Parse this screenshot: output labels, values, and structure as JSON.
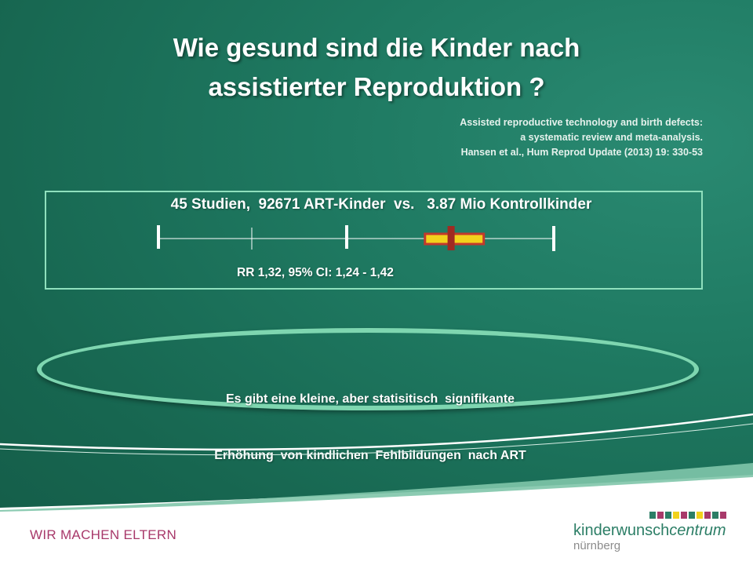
{
  "slide": {
    "title_lines": [
      "Wie gesund sind die Kinder nach",
      "assistierter Reproduktion ?"
    ],
    "citation_lines": [
      "Assisted reproductive technology and birth defects:",
      "a systematic review and meta-analysis.",
      "Hansen et al.,  Hum Reprod Update (2013) 19: 330-53"
    ],
    "study_summary": "45 Studien,  92671 ART-Kinder  vs.   3.87 Mio Kontrollkinder",
    "result_label": "RR 1,32, 95% CI: 1,24 - 1,42",
    "conclusion_lines": [
      "Es gibt eine kleine, aber statisitisch  signifikante",
      "Erhöhung  von kindlichen  Fehlbildungen  nach ART"
    ]
  },
  "forest_plot": {
    "point_estimate": 1.32,
    "ci_low": 1.24,
    "ci_high": 1.42,
    "colors": {
      "ci_bar": "#f2d21c",
      "ci_border": "#c23a2c",
      "marker": "#a02a22",
      "axis": "#ffffff"
    }
  },
  "footer": {
    "slogan": "WIR MACHEN ELTERN",
    "logo_main_regular": "kinderwunsch",
    "logo_main_italic": "centrum",
    "logo_sub": "nürnberg",
    "logo_bar_colors": [
      "#2c7e66",
      "#a8396a",
      "#2c7e66",
      "#f2d21c",
      "#a8396a",
      "#2c7e66",
      "#f2d21c",
      "#a8396a",
      "#2c7e66",
      "#a8396a"
    ],
    "colors": {
      "slogan": "#a8396a",
      "logo_text": "#2c7e66",
      "logo_sub": "#8c8c8c"
    }
  }
}
